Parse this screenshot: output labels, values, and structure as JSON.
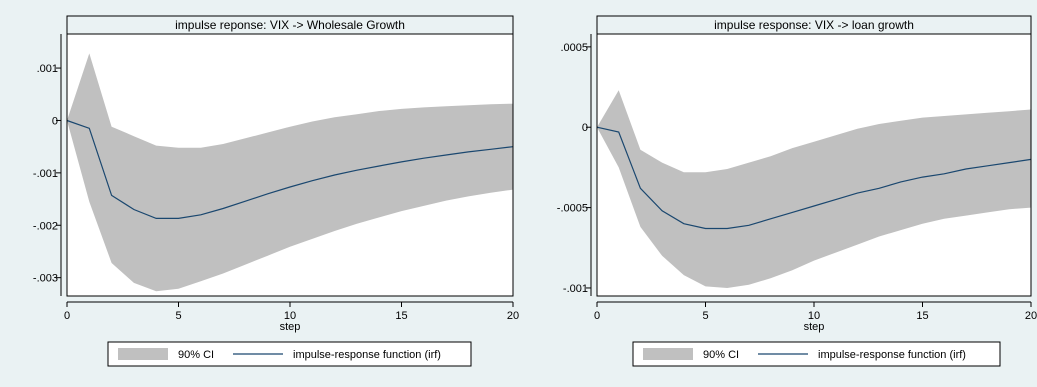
{
  "colors": {
    "background": "#eaf2f3",
    "plot_bg": "#ffffff",
    "title_bar": "#eaf2f3",
    "ci_band": "#c0c0c0",
    "irf_line": "#1a476f"
  },
  "chart_data": [
    {
      "type": "area",
      "title": "impulse reponse: VIX -> Wholesale Growth",
      "xlabel": "step",
      "ylabel": "",
      "x": [
        0,
        1,
        2,
        3,
        4,
        5,
        6,
        7,
        8,
        9,
        10,
        11,
        12,
        13,
        14,
        15,
        16,
        17,
        18,
        19,
        20
      ],
      "xlim": [
        0,
        20
      ],
      "ylim": [
        -0.00335,
        0.00165
      ],
      "xticks": [
        0,
        5,
        10,
        15,
        20
      ],
      "xtick_labels": [
        "0",
        "5",
        "10",
        "15",
        "20"
      ],
      "yticks": [
        0.001,
        0,
        -0.001,
        -0.002,
        -0.003
      ],
      "ytick_labels": [
        ".001",
        "0",
        "-.001",
        "-.002",
        "-.003"
      ],
      "grid": false,
      "series": [
        {
          "name": "impulse-response function (irf)",
          "kind": "line",
          "values": [
            0,
            -0.00015,
            -0.00143,
            -0.0017,
            -0.00187,
            -0.00187,
            -0.0018,
            -0.00168,
            -0.00154,
            -0.0014,
            -0.00127,
            -0.00115,
            -0.00104,
            -0.00095,
            -0.00087,
            -0.00079,
            -0.00072,
            -0.00066,
            -0.0006,
            -0.00055,
            -0.0005
          ]
        },
        {
          "name": "90% CI",
          "kind": "band",
          "lower": [
            0,
            -0.00155,
            -0.00272,
            -0.0031,
            -0.00326,
            -0.00321,
            -0.00307,
            -0.00292,
            -0.00275,
            -0.00258,
            -0.00241,
            -0.00226,
            -0.00211,
            -0.00197,
            -0.00185,
            -0.00173,
            -0.00163,
            -0.00153,
            -0.00145,
            -0.00138,
            -0.00132
          ],
          "upper": [
            0,
            0.00128,
            -0.00012,
            -0.0003,
            -0.00048,
            -0.00052,
            -0.00052,
            -0.00045,
            -0.00034,
            -0.00023,
            -0.00012,
            -2e-05,
            6e-05,
            0.00012,
            0.00018,
            0.00022,
            0.00025,
            0.00027,
            0.00029,
            0.00031,
            0.00032
          ]
        }
      ],
      "legend": {
        "position": "bottom",
        "items": [
          {
            "label": "90% CI",
            "kind": "band"
          },
          {
            "label": "impulse-response function (irf)",
            "kind": "line"
          }
        ]
      }
    },
    {
      "type": "area",
      "title": "impulse response: VIX -> loan growth",
      "xlabel": "step",
      "ylabel": "",
      "x": [
        0,
        1,
        2,
        3,
        4,
        5,
        6,
        7,
        8,
        9,
        10,
        11,
        12,
        13,
        14,
        15,
        16,
        17,
        18,
        19,
        20
      ],
      "xlim": [
        0,
        20
      ],
      "ylim": [
        -0.00105,
        0.00058
      ],
      "xticks": [
        0,
        5,
        10,
        15,
        20
      ],
      "xtick_labels": [
        "0",
        "5",
        "10",
        "15",
        "20"
      ],
      "yticks": [
        0.0005,
        0,
        -0.0005,
        -0.001
      ],
      "ytick_labels": [
        ".0005",
        "0",
        "-.0005",
        "-.001"
      ],
      "grid": false,
      "series": [
        {
          "name": "impulse-response function (irf)",
          "kind": "line",
          "values": [
            0,
            -3e-05,
            -0.00038,
            -0.00052,
            -0.0006,
            -0.00063,
            -0.00063,
            -0.00061,
            -0.00057,
            -0.00053,
            -0.00049,
            -0.00045,
            -0.00041,
            -0.00038,
            -0.00034,
            -0.00031,
            -0.00029,
            -0.00026,
            -0.00024,
            -0.00022,
            -0.0002
          ]
        },
        {
          "name": "90% CI",
          "kind": "band",
          "lower": [
            0,
            -0.00025,
            -0.00062,
            -0.0008,
            -0.00092,
            -0.00099,
            -0.001,
            -0.00098,
            -0.00094,
            -0.00089,
            -0.00083,
            -0.00078,
            -0.00073,
            -0.00068,
            -0.00064,
            -0.0006,
            -0.00057,
            -0.00055,
            -0.00053,
            -0.00051,
            -0.0005
          ],
          "upper": [
            0,
            0.00023,
            -0.00014,
            -0.00022,
            -0.00028,
            -0.00028,
            -0.00026,
            -0.00022,
            -0.00018,
            -0.00013,
            -9e-05,
            -5e-05,
            -1e-05,
            2e-05,
            4e-05,
            6e-05,
            7e-05,
            8e-05,
            9e-05,
            0.0001,
            0.00011
          ]
        }
      ],
      "legend": {
        "position": "bottom",
        "items": [
          {
            "label": "90% CI",
            "kind": "band"
          },
          {
            "label": "impulse-response function (irf)",
            "kind": "line"
          }
        ]
      }
    }
  ]
}
